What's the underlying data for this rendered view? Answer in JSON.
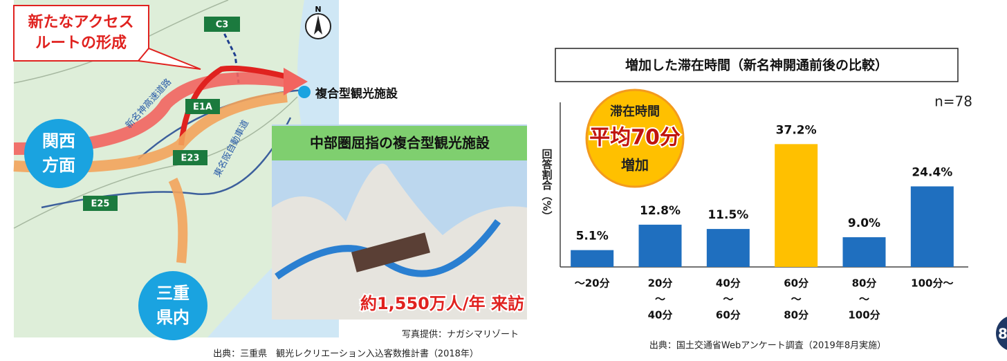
{
  "map": {
    "callout": [
      "新たなアクセス",
      "ルートの形成"
    ],
    "north": "N",
    "roads": [
      "C3",
      "E1A",
      "E23",
      "E25"
    ],
    "road_names": [
      "新名神高速道路",
      "東名阪自動車道"
    ],
    "origin_kansai": [
      "関西",
      "方面"
    ],
    "origin_mie": [
      "三重",
      "県内"
    ],
    "destination": "複合型観光施設",
    "source": "出典：三重県　観光レクリエーション入込客数推計書（2018年）"
  },
  "photo": {
    "title": "中部圏屈指の複合型観光施設",
    "visitors": "約1,550万人/年 来訪",
    "credit": "写真提供：ナガシマリゾート"
  },
  "chart_data": {
    "type": "bar",
    "title": "増加した滞在時間（新名神開通前後の比較）",
    "sample": "n=78",
    "y_label": "回答割合（%）",
    "badge": [
      "滞在時間",
      "平均70分",
      "増加"
    ],
    "categories": [
      [
        "～20分"
      ],
      [
        "20分",
        "～",
        "40分"
      ],
      [
        "40分",
        "～",
        "60分"
      ],
      [
        "60分",
        "～",
        "80分"
      ],
      [
        "80分",
        "～",
        "100分"
      ],
      [
        "100分～"
      ]
    ],
    "values": [
      5.1,
      12.8,
      11.5,
      37.2,
      9.0,
      24.4
    ],
    "value_labels": [
      "5.1%",
      "12.8%",
      "11.5%",
      "37.2%",
      "9.0%",
      "24.4%"
    ],
    "colors": [
      "#1f6fbf",
      "#1f6fbf",
      "#1f6fbf",
      "#ffc000",
      "#1f6fbf",
      "#1f6fbf"
    ],
    "ylim": [
      0,
      40
    ],
    "source": "出典：国土交通省Webアンケート調査（2019年8月実施）"
  },
  "page_number": "8"
}
